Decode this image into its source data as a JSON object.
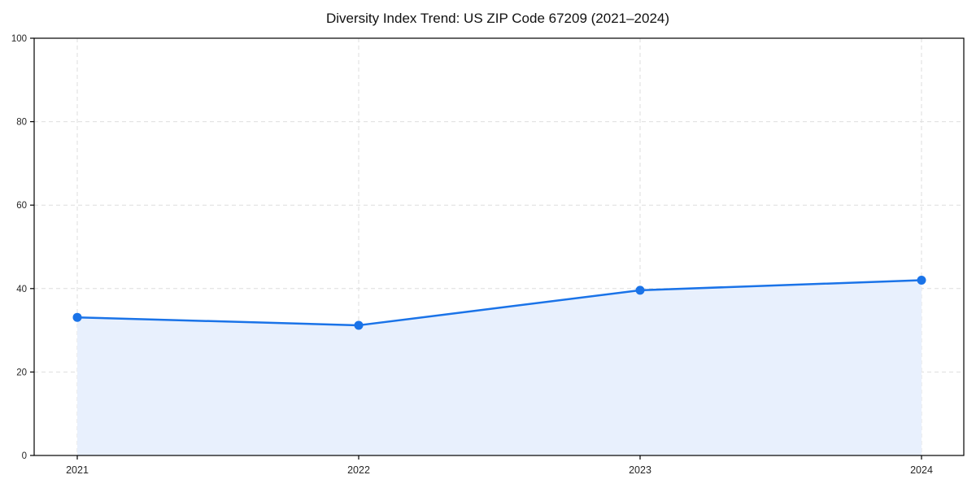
{
  "chart_data": {
    "type": "area",
    "title": "Diversity Index Trend: US ZIP Code 67209 (2021–2024)",
    "categories": [
      "2021",
      "2022",
      "2023",
      "2024"
    ],
    "series": [
      {
        "name": "Diversity Index",
        "values": [
          33.1,
          31.2,
          39.6,
          42.0
        ]
      }
    ],
    "xlabel": "",
    "ylabel": "",
    "ylim": [
      0,
      100
    ],
    "yticks": [
      0,
      20,
      40,
      60,
      80,
      100
    ],
    "grid": true,
    "grid_style": "dashed",
    "legend_position": "none",
    "colors": {
      "line": "#1a73e8",
      "marker": "#1a73e8",
      "area_fill": "#e8f0fd",
      "grid": "#dedede",
      "axis": "#000000",
      "tick_text": "#262626",
      "title_text": "#111111",
      "background": "#ffffff"
    }
  }
}
